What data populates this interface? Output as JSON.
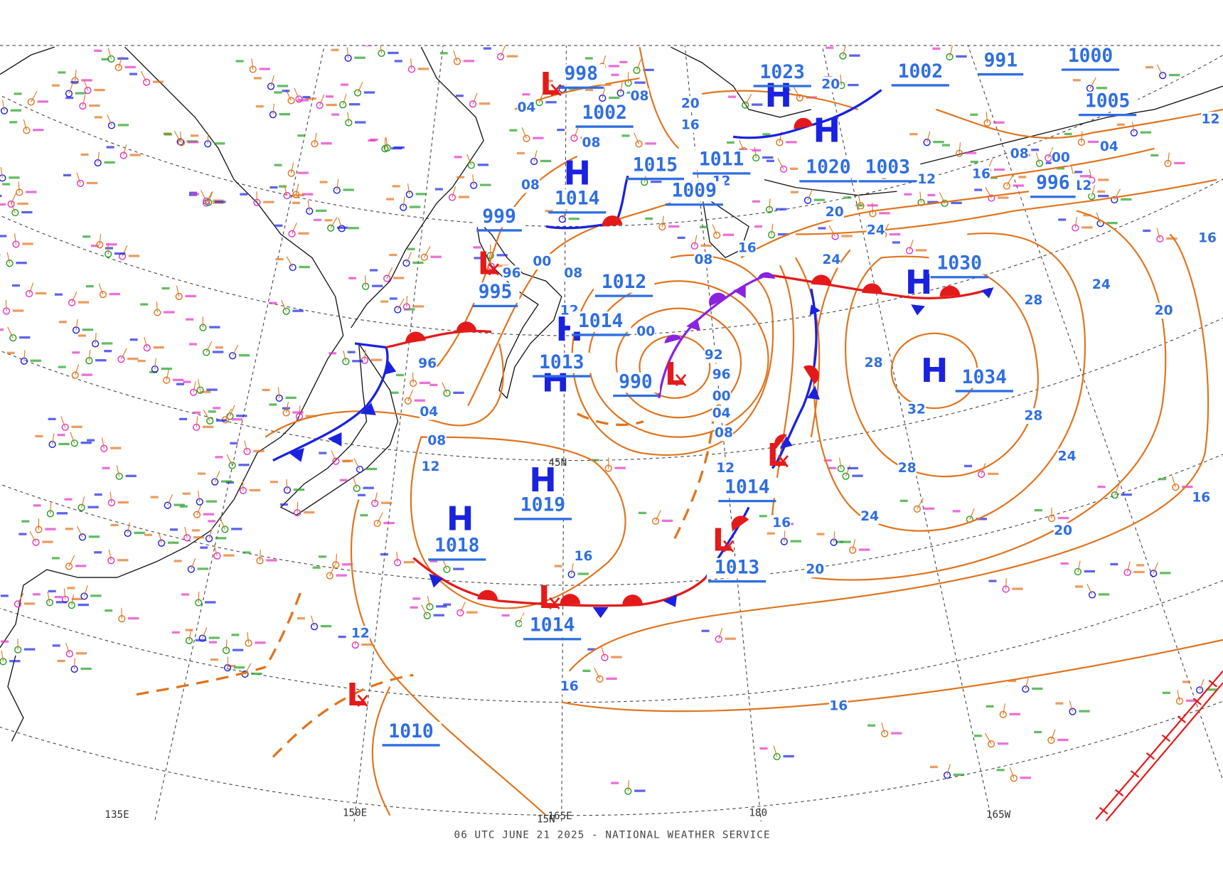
{
  "map": {
    "footer": "06 UTC JUNE 21 2025 - NATIONAL WEATHER SERVICE",
    "longitude_labels": [
      "135E",
      "150E",
      "165E",
      "180",
      "165W"
    ],
    "latitude_labels": [
      "45N",
      "15N"
    ]
  },
  "pressure_centers": [
    {
      "symbol": "H",
      "value": "1034"
    },
    {
      "symbol": "H",
      "value": "1030"
    },
    {
      "symbol": "L",
      "value": "990"
    },
    {
      "symbol": "L",
      "value": "1014"
    },
    {
      "symbol": "L",
      "value": "1013"
    },
    {
      "symbol": "L",
      "value": "1014"
    },
    {
      "symbol": "H",
      "value": "1018"
    },
    {
      "symbol": "H",
      "value": "1019"
    },
    {
      "symbol": "L",
      "value": "1010"
    },
    {
      "symbol": "H",
      "value": "1013"
    },
    {
      "symbol": "H",
      "value": "1014"
    },
    {
      "value": "1012"
    },
    {
      "symbol": "L",
      "value": "995"
    },
    {
      "value": "999"
    },
    {
      "symbol": "L",
      "value": "998"
    },
    {
      "value": "1002"
    },
    {
      "value": "1015"
    },
    {
      "value": "1011"
    },
    {
      "value": "1009"
    },
    {
      "symbol": "H",
      "value": "1014"
    },
    {
      "symbol": "H",
      "value": "1023"
    },
    {
      "symbol": "H",
      "value": "1020"
    },
    {
      "value": "1003"
    },
    {
      "value": "1002"
    },
    {
      "value": "1000"
    },
    {
      "value": "1005"
    },
    {
      "value": "996"
    },
    {
      "value": "991"
    }
  ],
  "isobar_labels": [
    "16",
    "20",
    "24",
    "28",
    "20",
    "24",
    "28",
    "28",
    "32",
    "28",
    "24",
    "20",
    "16",
    "16",
    "16",
    "12",
    "16",
    "12",
    "08",
    "04",
    "00",
    "96",
    "92",
    "00",
    "08",
    "04",
    "12",
    "96",
    "96",
    "00",
    "08",
    "12",
    "08",
    "04",
    "08",
    "08",
    "16",
    "20",
    "20",
    "24",
    "24",
    "20",
    "16",
    "12",
    "08",
    "16",
    "12",
    "08",
    "04",
    "00",
    "12",
    "12",
    "16"
  ]
}
